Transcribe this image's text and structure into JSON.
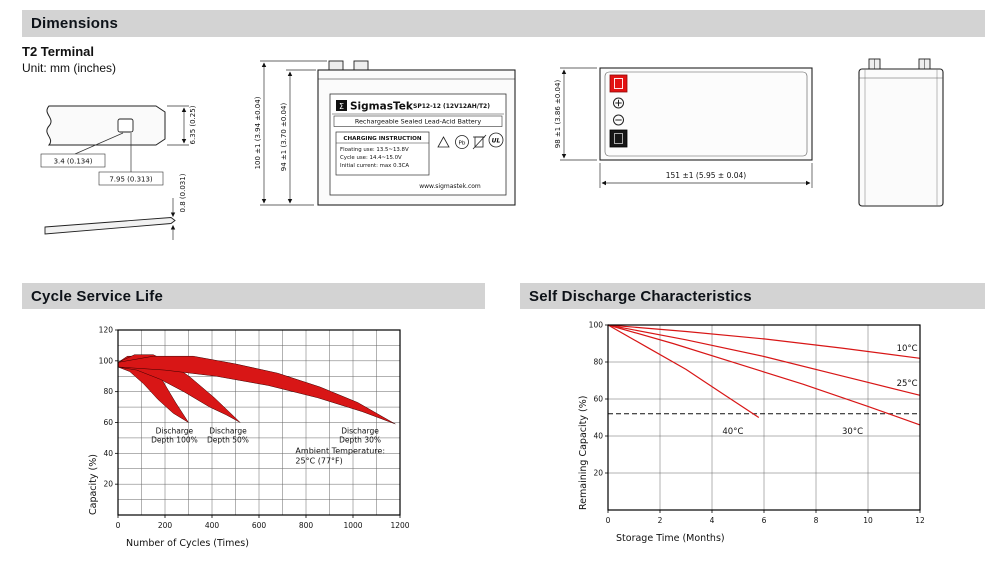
{
  "sections": {
    "dimensions": "Dimensions",
    "cycle_service_life": "Cycle Service Life",
    "self_discharge": "Self Discharge Characteristics"
  },
  "terminal": {
    "heading": "T2 Terminal",
    "unit_note": "Unit: mm (inches)",
    "dim_height": "6.35 (0.25)",
    "dim_hole": "3.4 (0.134)",
    "dim_width": "7.95 (0.313)",
    "dim_thickness": "0.8 (0.031)"
  },
  "front_view": {
    "dim_total_height": "100 ±1 (3.94 ±0.04)",
    "dim_case_height": "94 ±1 (3.70 ±0.04)",
    "label": {
      "logo_glyph": "Σ",
      "brand": "SigmasTek",
      "model": "SP12-12 (12V12AH/T2)",
      "type_line": "Rechargeable Sealed Lead-Acid Battery",
      "charging_title": "CHARGING INSTRUCTION",
      "charging_line1": "Floating use: 13.5~13.8V",
      "charging_line2": "Cycle use: 14.4~15.0V",
      "charging_line3": "Initial current: max 0.3CA",
      "pb_text": "Pb",
      "ul_text": "UL",
      "website": "www.sigmastek.com"
    }
  },
  "top_view": {
    "dim_height": "98 ±1 (3.86 ±0.04)",
    "dim_length": "151 ±1 (5.95 ± 0.04)"
  },
  "chart_data": [
    {
      "type": "area",
      "title": "Cycle Service Life",
      "xlabel": "Number of Cycles (Times)",
      "ylabel": "Capacity (%)",
      "xlim": [
        0,
        1200
      ],
      "ylim": [
        0,
        120
      ],
      "xticks": [
        0,
        200,
        400,
        600,
        800,
        1000,
        1200
      ],
      "yticks": [
        20,
        40,
        60,
        80,
        100,
        120
      ],
      "x_grid": 100,
      "y_grid": 10,
      "grid": true,
      "band_color": "#d81616",
      "bands": [
        {
          "name": "Discharge Depth 100%",
          "color": "#d81616",
          "upper": [
            [
              0,
              99
            ],
            [
              40,
              103
            ],
            [
              90,
              103
            ],
            [
              140,
              97
            ],
            [
              190,
              87
            ],
            [
              245,
              73
            ],
            [
              300,
              60
            ]
          ],
          "lower": [
            [
              0,
              96
            ],
            [
              50,
              93
            ],
            [
              110,
              85
            ],
            [
              170,
              75
            ],
            [
              235,
              66
            ],
            [
              300,
              60
            ]
          ]
        },
        {
          "name": "Discharge Depth 50%",
          "color": "#d81616",
          "upper": [
            [
              0,
              99
            ],
            [
              70,
              104
            ],
            [
              150,
              104
            ],
            [
              230,
              98
            ],
            [
              310,
              89
            ],
            [
              410,
              76
            ],
            [
              520,
              60
            ]
          ],
          "lower": [
            [
              0,
              96
            ],
            [
              80,
              94
            ],
            [
              180,
              88
            ],
            [
              280,
              80
            ],
            [
              390,
              70
            ],
            [
              460,
              65
            ],
            [
              520,
              60
            ]
          ]
        },
        {
          "name": "Discharge Depth 30%",
          "color": "#d81616",
          "upper": [
            [
              0,
              99
            ],
            [
              150,
              103
            ],
            [
              320,
              103
            ],
            [
              500,
              98
            ],
            [
              680,
              92
            ],
            [
              860,
              83
            ],
            [
              1020,
              73
            ],
            [
              1180,
              59
            ]
          ],
          "lower": [
            [
              0,
              96
            ],
            [
              200,
              94
            ],
            [
              420,
              90
            ],
            [
              640,
              84
            ],
            [
              850,
              76
            ],
            [
              1040,
              67
            ],
            [
              1180,
              59
            ]
          ]
        }
      ],
      "labels": [
        {
          "lines": [
            "Discharge",
            "Depth 100%"
          ],
          "x": 240,
          "y": 53
        },
        {
          "lines": [
            "Discharge",
            "Depth 50%"
          ],
          "x": 468,
          "y": 53
        },
        {
          "lines": [
            "Discharge",
            "Depth 30%"
          ],
          "x": 1030,
          "y": 53
        }
      ],
      "annotation": {
        "lines": [
          "Ambient Temperature:",
          "25°C (77°F)"
        ],
        "x": 755,
        "y": 40
      }
    },
    {
      "type": "line",
      "title": "Self Discharge Characteristics",
      "xlabel": "Storage Time (Months)",
      "ylabel": "Remaining Capacity (%)",
      "xlim": [
        0,
        12
      ],
      "ylim": [
        0,
        100
      ],
      "xticks": [
        0,
        2,
        4,
        6,
        8,
        10,
        12
      ],
      "yticks": [
        20,
        40,
        60,
        80,
        100
      ],
      "x_grid": 2,
      "y_grid": 20,
      "grid": true,
      "line_color": "#d81616",
      "dashed_line_y": 52,
      "series": [
        {
          "name": "10°C",
          "points": [
            [
              0,
              100
            ],
            [
              3,
              96.5
            ],
            [
              6,
              92.5
            ],
            [
              9,
              87.5
            ],
            [
              12,
              82
            ]
          ],
          "label_pos": [
            11.1,
            86
          ]
        },
        {
          "name": "25°C",
          "points": [
            [
              0,
              100
            ],
            [
              3,
              92
            ],
            [
              6,
              83
            ],
            [
              9,
              72.5
            ],
            [
              12,
              62
            ]
          ],
          "label_pos": [
            11.1,
            67
          ]
        },
        {
          "name": "30°C",
          "points": [
            [
              0,
              100
            ],
            [
              2.5,
              90
            ],
            [
              5,
              79
            ],
            [
              7.5,
              68
            ],
            [
              10,
              56
            ],
            [
              12,
              46
            ]
          ],
          "label_pos": [
            9,
            41
          ]
        },
        {
          "name": "40°C",
          "points": [
            [
              0,
              100
            ],
            [
              1.5,
              88
            ],
            [
              3,
              76
            ],
            [
              4.5,
              62
            ],
            [
              5.8,
              50
            ]
          ],
          "label_pos": [
            4.4,
            41
          ]
        }
      ]
    }
  ]
}
